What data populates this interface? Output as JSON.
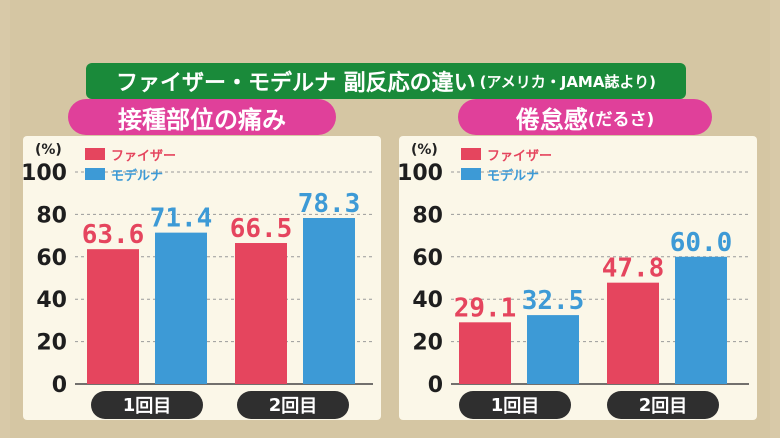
{
  "banner": {
    "title": "ファイザー・モデルナ 副反応の違い",
    "source": "(アメリカ・JAMA誌より)"
  },
  "chart_data": [
    {
      "type": "bar",
      "title": "接種部位の痛み",
      "ylabel": "(%)",
      "ylim": [
        0,
        100
      ],
      "yticks": [
        "0",
        "20",
        "40",
        "60",
        "80",
        "100"
      ],
      "categories": [
        "1回目",
        "2回目"
      ],
      "category_labels": [
        {
          "num": "1",
          "rest": "回目"
        },
        {
          "num": "2",
          "rest": "回目"
        }
      ],
      "series": [
        {
          "name": "ファイザー",
          "color": "#e5455e",
          "values": [
            63.6,
            66.5
          ],
          "labels": [
            "63.6",
            "66.5"
          ]
        },
        {
          "name": "モデルナ",
          "color": "#3d9ad6",
          "values": [
            71.4,
            78.3
          ],
          "labels": [
            "71.4",
            "78.3"
          ]
        }
      ],
      "grid": true,
      "legend": "top-left"
    },
    {
      "type": "bar",
      "title": "倦怠感",
      "title_suffix": "(だるさ)",
      "ylabel": "(%)",
      "ylim": [
        0,
        100
      ],
      "yticks": [
        "0",
        "20",
        "40",
        "60",
        "80",
        "100"
      ],
      "categories": [
        "1回目",
        "2回目"
      ],
      "category_labels": [
        {
          "num": "1",
          "rest": "回目"
        },
        {
          "num": "2",
          "rest": "回目"
        }
      ],
      "series": [
        {
          "name": "ファイザー",
          "color": "#e5455e",
          "values": [
            29.1,
            47.8
          ],
          "labels": [
            "29.1",
            "47.8"
          ]
        },
        {
          "name": "モデルナ",
          "color": "#3d9ad6",
          "values": [
            32.5,
            60.0
          ],
          "labels": [
            "32.5",
            "60.0"
          ]
        }
      ],
      "grid": true,
      "legend": "top-left"
    }
  ]
}
